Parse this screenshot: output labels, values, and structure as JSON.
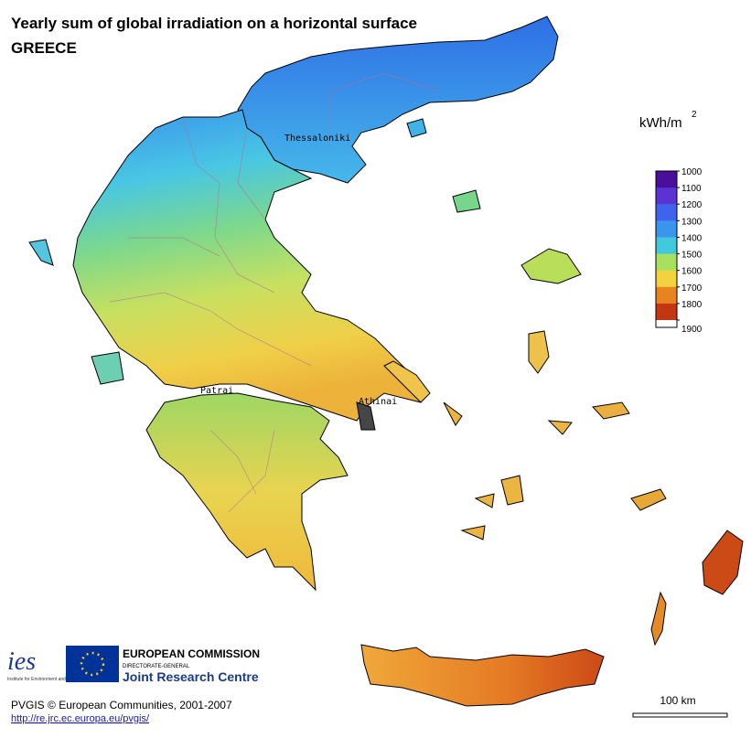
{
  "header": {
    "title": "Yearly sum of global irradiation on a horizontal surface",
    "subtitle": "GREECE"
  },
  "legend": {
    "unit": "kWh/m",
    "unit_exponent": "2",
    "ticks": [
      1000,
      1100,
      1200,
      1300,
      1400,
      1500,
      1600,
      1700,
      1800,
      1900
    ],
    "colors": [
      "#4a0e9c",
      "#5b33d4",
      "#3f63ee",
      "#3a95ee",
      "#42c8dc",
      "#a6e05c",
      "#f2d23e",
      "#e8841f",
      "#c43612"
    ]
  },
  "places": [
    {
      "label": "Thessaloniki"
    },
    {
      "label": "Patrai"
    },
    {
      "label": "Athinai"
    }
  ],
  "logos": {
    "ies": "ies",
    "ies_caption": "Institute for Environment and Sustainability",
    "commission": "EUROPEAN COMMISSION",
    "directorate": "DIRECTORATE-GENERAL",
    "jrc": "Joint Research Centre"
  },
  "scale": {
    "label": "100 km"
  },
  "footer": {
    "copyright": "PVGIS © European Communities, 2001-2007",
    "url": "http://re.jrc.ec.europa.eu/pvgis/"
  }
}
